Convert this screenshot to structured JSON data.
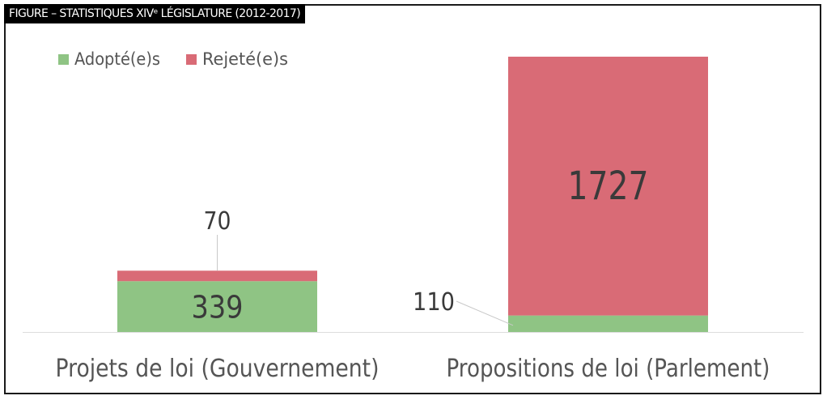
{
  "figure_title": "FIGURE – STATISTIQUES XIVᵉ LÉGISLATURE (2012-2017)",
  "chart_data": {
    "type": "bar",
    "stacked": true,
    "categories": [
      "Projets de loi (Gouvernement)",
      "Propositions de loi (Parlement)"
    ],
    "series": [
      {
        "name": "Adopté(e)s",
        "values": [
          339,
          110
        ],
        "color": "#8fc484"
      },
      {
        "name": "Rejeté(e)s",
        "values": [
          70,
          1727
        ],
        "color": "#d96b76"
      }
    ],
    "data_labels": [
      "339",
      "70",
      "110",
      "1727"
    ],
    "ylim": [
      0,
      1837
    ],
    "legend_position": "top-left",
    "grid": false
  }
}
